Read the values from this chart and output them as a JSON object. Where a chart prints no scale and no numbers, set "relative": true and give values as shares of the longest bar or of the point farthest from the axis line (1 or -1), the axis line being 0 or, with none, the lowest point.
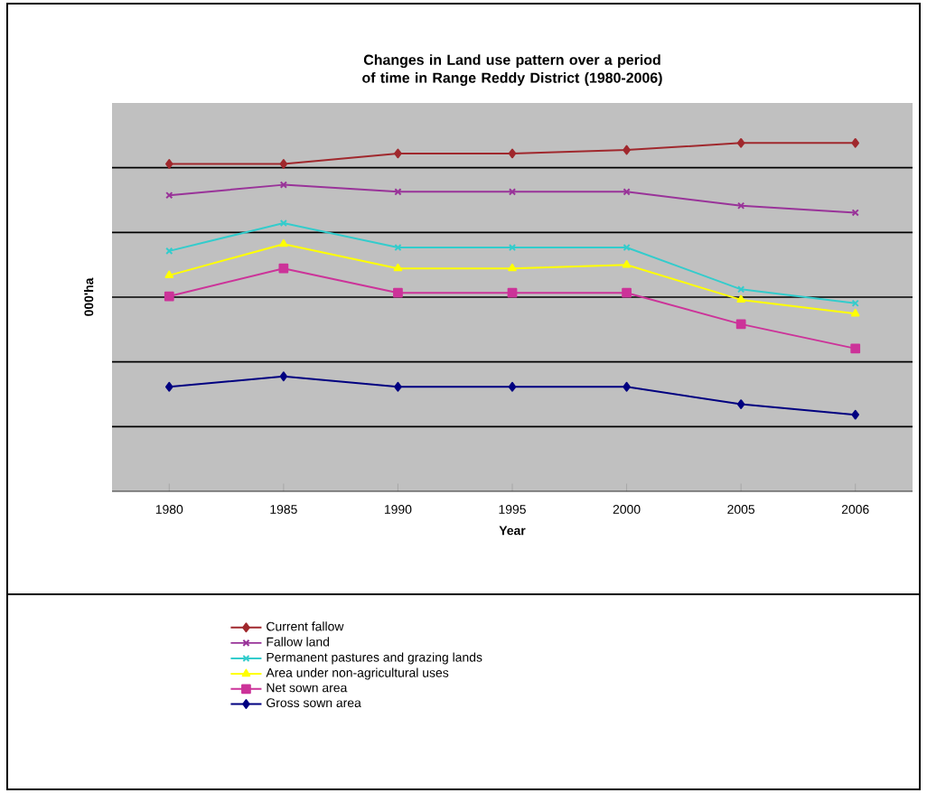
{
  "chart_data": {
    "type": "line",
    "title": "Changes in Land use pattern over a period of time in Range Reddy District (1980-2006)",
    "xlabel": "Year",
    "ylabel": "000'ha",
    "relative": true,
    "grid": "y",
    "legend": "bottom",
    "categories": [
      "1980",
      "1985",
      "1990",
      "1995",
      "2000",
      "2005",
      "2006"
    ],
    "series": [
      {
        "name": "Current fallow",
        "color": "#a0282d",
        "marker": "diamond",
        "values": [
          0.94,
          0.94,
          0.97,
          0.97,
          0.98,
          1.0,
          1.0
        ]
      },
      {
        "name": "Fallow land",
        "color": "#993399",
        "marker": "cross",
        "values": [
          0.85,
          0.88,
          0.86,
          0.86,
          0.86,
          0.82,
          0.8
        ]
      },
      {
        "name": "Permanent pastures and grazing lands",
        "color": "#33cccc",
        "marker": "cross",
        "values": [
          0.69,
          0.77,
          0.7,
          0.7,
          0.7,
          0.58,
          0.54
        ]
      },
      {
        "name": "Area under non-agricultural uses",
        "color": "#ffff00",
        "marker": "triangle",
        "values": [
          0.62,
          0.71,
          0.64,
          0.64,
          0.65,
          0.55,
          0.51
        ]
      },
      {
        "name": "Net sown area",
        "color": "#cc3399",
        "marker": "square",
        "values": [
          0.56,
          0.64,
          0.57,
          0.57,
          0.57,
          0.48,
          0.41
        ]
      },
      {
        "name": "Gross sown area",
        "color": "#000080",
        "marker": "diamond",
        "values": [
          0.3,
          0.33,
          0.3,
          0.3,
          0.3,
          0.25,
          0.22
        ]
      }
    ]
  }
}
